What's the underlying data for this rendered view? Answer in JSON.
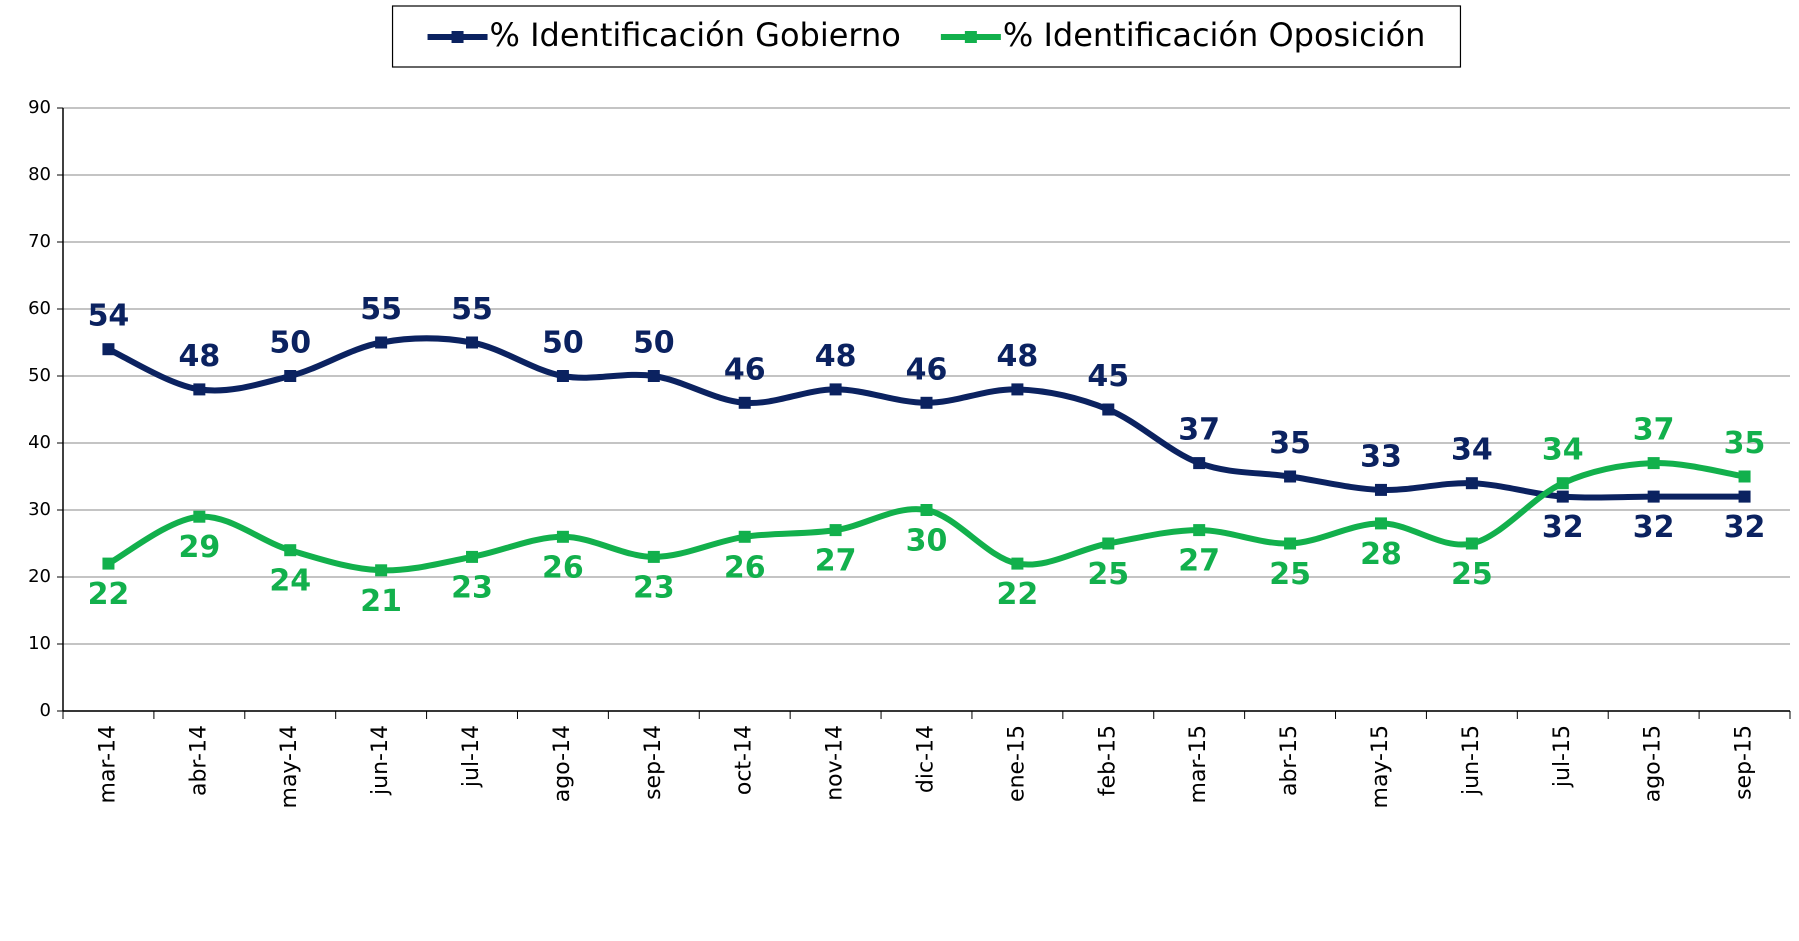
{
  "chart_data": {
    "type": "line",
    "categories": [
      "mar-14",
      "abr-14",
      "may-14",
      "jun-14",
      "jul-14",
      "ago-14",
      "sep-14",
      "oct-14",
      "nov-14",
      "dic-14",
      "ene-15",
      "feb-15",
      "mar-15",
      "abr-15",
      "may-15",
      "jun-15",
      "jul-15",
      "ago-15",
      "sep-15"
    ],
    "series": [
      {
        "name": "% Identificación Gobierno",
        "color": "#0b2260",
        "values": [
          54,
          48,
          50,
          55,
          55,
          50,
          50,
          46,
          48,
          46,
          48,
          45,
          37,
          35,
          33,
          34,
          32,
          32,
          32
        ]
      },
      {
        "name": "% Identificación Oposición",
        "color": "#12b04c",
        "values": [
          22,
          29,
          24,
          21,
          23,
          26,
          23,
          26,
          27,
          30,
          22,
          25,
          27,
          25,
          28,
          25,
          34,
          37,
          35
        ]
      }
    ],
    "ylim": [
      0,
      90
    ],
    "yticks": [
      0,
      10,
      20,
      30,
      40,
      50,
      60,
      70,
      80,
      90
    ],
    "grid": true,
    "smooth": true,
    "legend": "top"
  }
}
